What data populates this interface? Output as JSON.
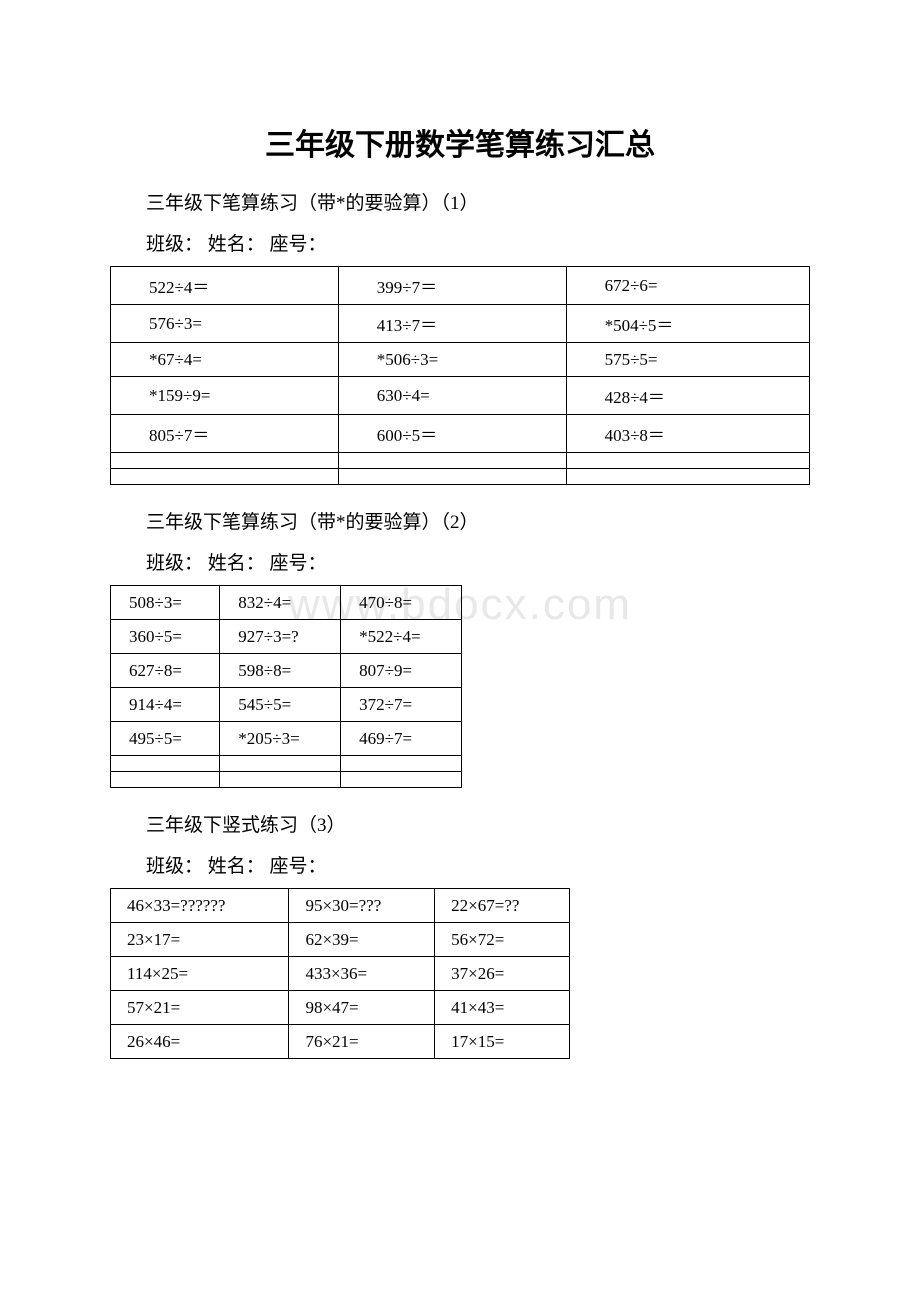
{
  "watermark": "www.bdocx.com",
  "title": "三年级下册数学笔算练习汇总",
  "section1": {
    "subtitle": "三年级下笔算练习（带*的要验算）（1）",
    "info": "班级：  姓名：  座号：",
    "table_width_class": "w1",
    "colors": {
      "border": "#000000",
      "text": "#000000",
      "background": "#ffffff"
    },
    "font_size": 17,
    "rows": [
      [
        "522÷4＝",
        "399÷7＝",
        "672÷6="
      ],
      [
        "576÷3=",
        "413÷7＝",
        "*504÷5＝"
      ],
      [
        "*67÷4=",
        "*506÷3=",
        "575÷5="
      ],
      [
        "*159÷9=",
        "630÷4=",
        "428÷4＝"
      ],
      [
        "805÷7＝",
        "600÷5＝",
        "403÷8＝"
      ],
      [
        "",
        "",
        ""
      ],
      [
        "",
        "",
        ""
      ]
    ]
  },
  "section2": {
    "subtitle": "三年级下笔算练习（带*的要验算）（2）",
    "info": "班级：  姓名：  座号：",
    "table_width_class": "w2",
    "colors": {
      "border": "#000000",
      "text": "#000000",
      "background": "#ffffff"
    },
    "font_size": 17,
    "rows": [
      [
        "508÷3=",
        "832÷4=",
        "470÷8="
      ],
      [
        "360÷5=",
        "927÷3=?",
        "*522÷4="
      ],
      [
        "627÷8=",
        "598÷8=",
        "807÷9="
      ],
      [
        "914÷4=",
        "545÷5=",
        "372÷7="
      ],
      [
        "495÷5=",
        "*205÷3=",
        "469÷7="
      ],
      [
        "",
        "",
        ""
      ],
      [
        "",
        "",
        ""
      ]
    ]
  },
  "section3": {
    "subtitle": "三年级下竖式练习（3）",
    "info": "班级：  姓名：  座号：",
    "table_width_class": "w3",
    "colors": {
      "border": "#000000",
      "text": "#000000",
      "background": "#ffffff"
    },
    "font_size": 17,
    "rows": [
      [
        "46×33=??????",
        "95×30=???",
        "22×67=??"
      ],
      [
        "23×17=",
        "62×39=",
        "56×72="
      ],
      [
        "114×25=",
        "433×36=",
        "37×26="
      ],
      [
        "57×21=",
        "98×47=",
        "41×43="
      ],
      [
        "26×46=",
        "76×21=",
        "17×15="
      ]
    ]
  }
}
